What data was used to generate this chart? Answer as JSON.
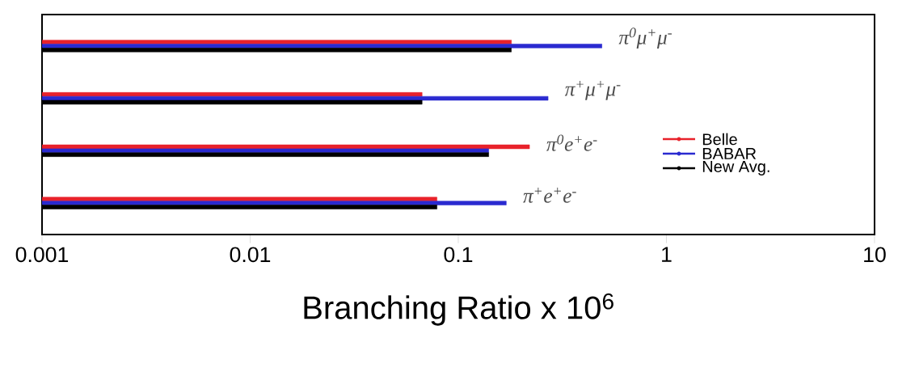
{
  "chart_data": {
    "type": "bar",
    "orientation": "horizontal",
    "log": "x",
    "xlabel": "Branching Ratio x 10$^{6}$",
    "categories": [
      "π$^{0}$μ$^{+}$μ$^{-}$",
      "π$^{+}$μ$^{+}$μ$^{-}$",
      "π$^{0}$e$^{+}$e$^{-}$",
      "π$^{+}$e$^{+}$e$^{-}$"
    ],
    "xlim": [
      0.001,
      10
    ],
    "xticks": [
      0.001,
      0.01,
      0.1,
      1,
      10
    ],
    "legend": "right",
    "series": [
      {
        "name": "Belle",
        "color": "#e8222b",
        "values": [
          0.18,
          0.067,
          0.22,
          0.079
        ]
      },
      {
        "name": "BABAR",
        "color": "#2a2ad0",
        "values": [
          0.49,
          0.27,
          0.14,
          0.17
        ]
      },
      {
        "name": "New Avg.",
        "color": "#000000",
        "values": [
          0.18,
          0.067,
          0.14,
          0.079
        ]
      }
    ]
  }
}
